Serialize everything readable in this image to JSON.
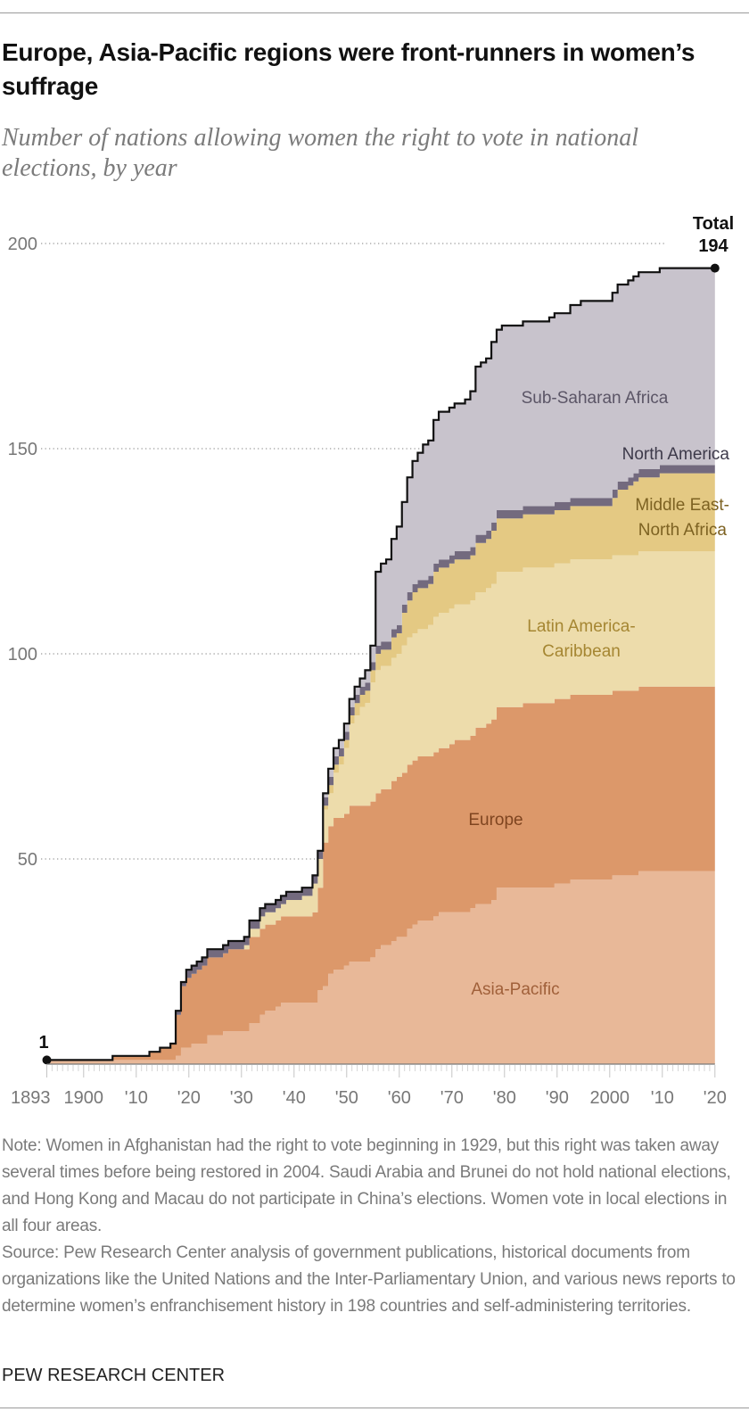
{
  "header": {
    "title": "Europe, Asia-Pacific regions were front-runners in women’s suffrage",
    "subtitle": "Number of nations allowing women the right to vote in national elections, by year"
  },
  "footer": {
    "note": "Note: Women in Afghanistan had the right to vote beginning in 1929, but this right was taken away several times before being restored in 2004. Saudi Arabia and Brunei do not hold national elections, and Hong Kong and Macau do not participate in China’s elections. Women vote in local elections in all four areas.",
    "source": "Source: Pew Research Center analysis of government publications, historical documents from organizations like the United Nations and the Inter-Parliamentary Union, and various news reports to determine women’s enfranchisement history in 198 countries and self-administering territories.",
    "brand": "PEW RESEARCH CENTER"
  },
  "chart_data": {
    "type": "area",
    "stacked": true,
    "step": true,
    "title": "Europe, Asia-Pacific regions were front-runners in women’s suffrage",
    "subtitle": "Number of nations allowing women the right to vote in national elections, by year",
    "xlabel": "",
    "ylabel": "",
    "xlim": [
      1893,
      2020
    ],
    "ylim": [
      0,
      200
    ],
    "grid": "horizontal-dotted",
    "legend": "inline-labels",
    "y_ticks": [
      {
        "value": 200,
        "label": "200"
      },
      {
        "value": 150,
        "label": "150"
      },
      {
        "value": 100,
        "label": "100"
      },
      {
        "value": 50,
        "label": "50"
      }
    ],
    "x_ticks": [
      {
        "year": 1893,
        "label": "1893"
      },
      {
        "year": 1900,
        "label": "1900"
      },
      {
        "year": 1910,
        "label": "'10"
      },
      {
        "year": 1920,
        "label": "'20"
      },
      {
        "year": 1930,
        "label": "'30"
      },
      {
        "year": 1940,
        "label": "'40"
      },
      {
        "year": 1950,
        "label": "'50"
      },
      {
        "year": 1960,
        "label": "'60"
      },
      {
        "year": 1970,
        "label": "'70"
      },
      {
        "year": 1980,
        "label": "'80"
      },
      {
        "year": 1990,
        "label": "'90"
      },
      {
        "year": 2000,
        "label": "2000"
      },
      {
        "year": 2010,
        "label": "'10"
      },
      {
        "year": 2020,
        "label": "'20"
      }
    ],
    "annotations": {
      "start_value": "1",
      "end_label": "Total",
      "end_value": "194"
    },
    "series": [
      {
        "name": "Asia-Pacific",
        "color": "#e8b898",
        "label_color": "#a0603a",
        "label_lines": [
          "Asia-Pacific"
        ],
        "points": [
          [
            1893,
            1
          ],
          [
            1918,
            2
          ],
          [
            1919,
            4
          ],
          [
            1921,
            5
          ],
          [
            1924,
            7
          ],
          [
            1927,
            8
          ],
          [
            1932,
            10
          ],
          [
            1934,
            12
          ],
          [
            1935,
            13
          ],
          [
            1937,
            14
          ],
          [
            1938,
            15
          ],
          [
            1945,
            18
          ],
          [
            1946,
            19
          ],
          [
            1947,
            22
          ],
          [
            1948,
            23
          ],
          [
            1950,
            24
          ],
          [
            1951,
            25
          ],
          [
            1955,
            26
          ],
          [
            1956,
            28
          ],
          [
            1957,
            29
          ],
          [
            1959,
            30
          ],
          [
            1960,
            31
          ],
          [
            1962,
            33
          ],
          [
            1963,
            34
          ],
          [
            1964,
            35
          ],
          [
            1967,
            36
          ],
          [
            1968,
            37
          ],
          [
            1974,
            38
          ],
          [
            1975,
            39
          ],
          [
            1978,
            40
          ],
          [
            1979,
            43
          ],
          [
            1990,
            44
          ],
          [
            1993,
            45
          ],
          [
            2001,
            46
          ],
          [
            2006,
            47
          ]
        ]
      },
      {
        "name": "Europe",
        "color": "#dc986a",
        "label_color": "#7f4520",
        "label_lines": [
          "Europe"
        ],
        "points": [
          [
            1893,
            0
          ],
          [
            1906,
            1
          ],
          [
            1913,
            2
          ],
          [
            1915,
            3
          ],
          [
            1917,
            4
          ],
          [
            1918,
            10
          ],
          [
            1919,
            15
          ],
          [
            1920,
            17
          ],
          [
            1922,
            18
          ],
          [
            1923,
            19
          ],
          [
            1928,
            20
          ],
          [
            1932,
            21
          ],
          [
            1944,
            22
          ],
          [
            1945,
            25
          ],
          [
            1946,
            35
          ],
          [
            1947,
            36
          ],
          [
            1948,
            37
          ],
          [
            1951,
            38
          ],
          [
            1959,
            39
          ],
          [
            1961,
            40
          ],
          [
            1970,
            41
          ],
          [
            1971,
            42
          ],
          [
            1975,
            43
          ],
          [
            1977,
            44
          ],
          [
            1984,
            45
          ]
        ]
      },
      {
        "name": "Latin America-Caribbean",
        "color": "#eddcab",
        "label_color": "#a58632",
        "label_lines": [
          "Latin America-",
          "Caribbean"
        ],
        "points": [
          [
            1893,
            0
          ],
          [
            1931,
            1
          ],
          [
            1932,
            2
          ],
          [
            1934,
            3
          ],
          [
            1939,
            4
          ],
          [
            1942,
            5
          ],
          [
            1944,
            7
          ],
          [
            1946,
            8
          ],
          [
            1948,
            11
          ],
          [
            1949,
            13
          ],
          [
            1950,
            16
          ],
          [
            1951,
            20
          ],
          [
            1952,
            22
          ],
          [
            1953,
            24
          ],
          [
            1954,
            25
          ],
          [
            1955,
            29
          ],
          [
            1956,
            30
          ],
          [
            1961,
            31
          ],
          [
            1966,
            32
          ],
          [
            1967,
            33
          ]
        ]
      },
      {
        "name": "Middle East-North Africa",
        "color": "#e4c983",
        "label_color": "#7d6222",
        "label_lines": [
          "Middle East-",
          "North Africa"
        ],
        "points": [
          [
            1893,
            0
          ],
          [
            1946,
            1
          ],
          [
            1947,
            2
          ],
          [
            1952,
            3
          ],
          [
            1956,
            4
          ],
          [
            1959,
            5
          ],
          [
            1961,
            8
          ],
          [
            1962,
            9
          ],
          [
            1963,
            10
          ],
          [
            1967,
            11
          ],
          [
            1975,
            12
          ],
          [
            1978,
            13
          ],
          [
            2001,
            14
          ],
          [
            2002,
            16
          ],
          [
            2004,
            17
          ],
          [
            2005,
            18
          ],
          [
            2010,
            19
          ]
        ]
      },
      {
        "name": "North America",
        "color": "#736a7e",
        "label_color": "#3d3a4a",
        "label_lines": [
          "North America"
        ],
        "points": [
          [
            1893,
            0
          ],
          [
            1918,
            1
          ],
          [
            1920,
            2
          ]
        ]
      },
      {
        "name": "Sub-Saharan Africa",
        "color": "#c8c3cc",
        "label_color": "#5b5566",
        "label_lines": [
          "Sub-Saharan Africa"
        ],
        "points": [
          [
            1893,
            0
          ],
          [
            1946,
            1
          ],
          [
            1947,
            2
          ],
          [
            1954,
            3
          ],
          [
            1955,
            4
          ],
          [
            1956,
            18
          ],
          [
            1957,
            19
          ],
          [
            1958,
            20
          ],
          [
            1959,
            22
          ],
          [
            1960,
            24
          ],
          [
            1961,
            25
          ],
          [
            1962,
            28
          ],
          [
            1963,
            30
          ],
          [
            1964,
            31
          ],
          [
            1965,
            33
          ],
          [
            1967,
            35
          ],
          [
            1968,
            36
          ],
          [
            1973,
            37
          ],
          [
            1974,
            38
          ],
          [
            1975,
            41
          ],
          [
            1976,
            42
          ],
          [
            1978,
            44
          ],
          [
            1980,
            45
          ],
          [
            1989,
            46
          ],
          [
            1993,
            47
          ],
          [
            1995,
            48
          ]
        ]
      }
    ]
  }
}
